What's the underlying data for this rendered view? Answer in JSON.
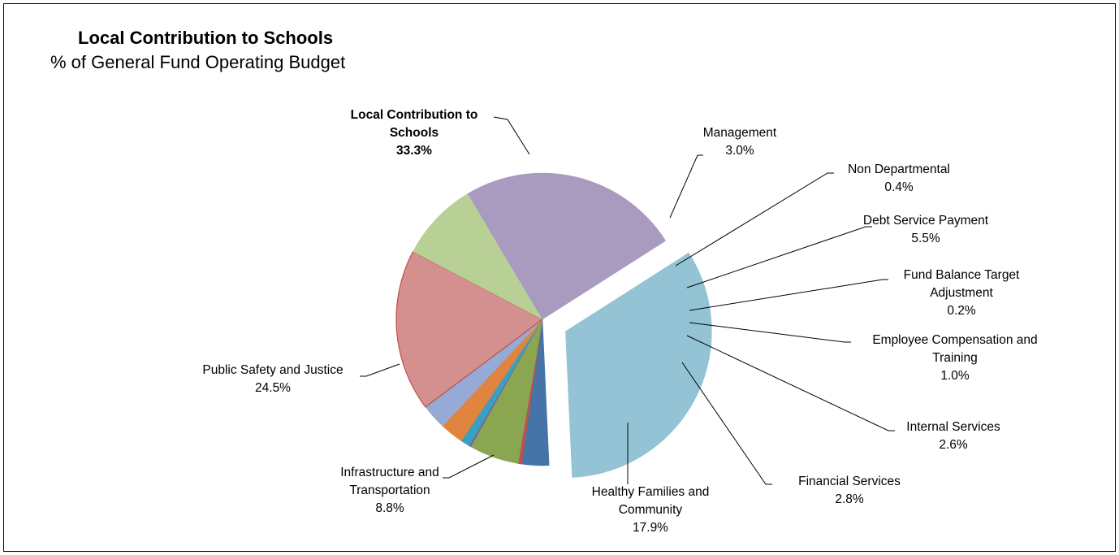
{
  "header": {
    "title": "Local Contribution to Schools",
    "subtitle": "% of General Fund Operating Budget"
  },
  "chart_data": {
    "type": "pie",
    "title": "Local Contribution to Schools",
    "subtitle": "% of General Fund Operating Budget",
    "legend": "none",
    "slices": [
      {
        "label_lines": [
          "Local Contribution to",
          "Schools"
        ],
        "value_text": "33.3%",
        "value": 33.3,
        "color": "#93c3d4",
        "exploded": true,
        "bold": true
      },
      {
        "label_lines": [
          "Management"
        ],
        "value_text": "3.0%",
        "value": 3.0,
        "color": "#4674a8"
      },
      {
        "label_lines": [
          "Non Departmental"
        ],
        "value_text": "0.4%",
        "value": 0.4,
        "color": "#c0504d"
      },
      {
        "label_lines": [
          "Debt Service Payment"
        ],
        "value_text": "5.5%",
        "value": 5.5,
        "color": "#8aa651"
      },
      {
        "label_lines": [
          "Fund Balance Target",
          "Adjustment"
        ],
        "value_text": "0.2%",
        "value": 0.2,
        "color": "#7b62a0"
      },
      {
        "label_lines": [
          "Employee Compensation and",
          "Training"
        ],
        "value_text": "1.0%",
        "value": 1.0,
        "color": "#3aa0bf"
      },
      {
        "label_lines": [
          "Internal Services"
        ],
        "value_text": "2.6%",
        "value": 2.6,
        "color": "#e0843f"
      },
      {
        "label_lines": [
          "Financial Services"
        ],
        "value_text": "2.8%",
        "value": 2.8,
        "color": "#95abd5"
      },
      {
        "label_lines": [
          "Healthy Families  and",
          "Community"
        ],
        "value_text": "17.9%",
        "value": 17.9,
        "color": "#d4908e",
        "outline": "#c0504d"
      },
      {
        "label_lines": [
          "Infrastructure and",
          "Transportation"
        ],
        "value_text": "8.8%",
        "value": 8.8,
        "color": "#b8cf95"
      },
      {
        "label_lines": [
          "Public Safety and Justice"
        ],
        "value_text": "24.5%",
        "value": 24.5,
        "color": "#a99ac0"
      }
    ]
  }
}
